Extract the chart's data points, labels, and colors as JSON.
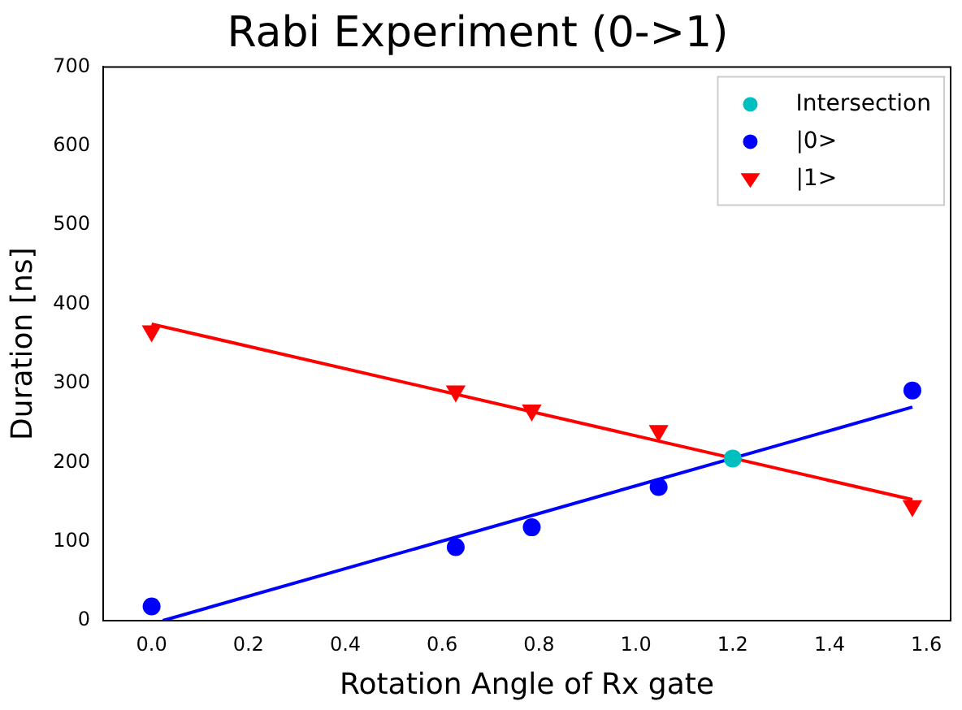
{
  "chart_data": {
    "type": "scatter",
    "title": "Rabi Experiment (0->1)",
    "xlabel": "Rotation Angle of Rx gate",
    "ylabel": "Duration [ns]",
    "xlim": [
      -0.1,
      1.65
    ],
    "xticks": [
      {
        "value": 0,
        "label": "0.0"
      },
      0.2,
      0.4,
      0.6,
      0.8,
      {
        "value": 1,
        "label": "1.0"
      },
      1.2,
      1.4,
      1.6
    ],
    "ylim": [
      0,
      700
    ],
    "yticks": [
      0,
      100,
      200,
      300,
      400,
      500,
      600,
      700
    ],
    "grid": false,
    "legend": "top right",
    "series": [
      {
        "name": "Intersection",
        "type": "scatter",
        "marker": "circle",
        "color": "#00bfbf",
        "x": [
          1.2
        ],
        "values": [
          205
        ]
      },
      {
        "name": "|0>",
        "type": "scatter",
        "marker": "circle",
        "color": "#0000ff",
        "x": [
          0.0,
          0.628,
          0.785,
          1.047,
          1.571
        ],
        "values": [
          18,
          93,
          118,
          169,
          291
        ]
      },
      {
        "name": "|1>",
        "type": "scatter",
        "marker": "triangle",
        "color": "#ff0000",
        "x": [
          0.0,
          0.628,
          0.785,
          1.047,
          1.571
        ],
        "values": [
          366,
          290,
          266,
          240,
          145
        ]
      },
      {
        "type": "line",
        "color": "#0000ff",
        "x": [
          0.023,
          1.571
        ],
        "values": [
          0,
          270
        ]
      },
      {
        "type": "line",
        "color": "#ff0000",
        "x": [
          0.0,
          1.571
        ],
        "values": [
          375,
          153
        ]
      }
    ]
  }
}
